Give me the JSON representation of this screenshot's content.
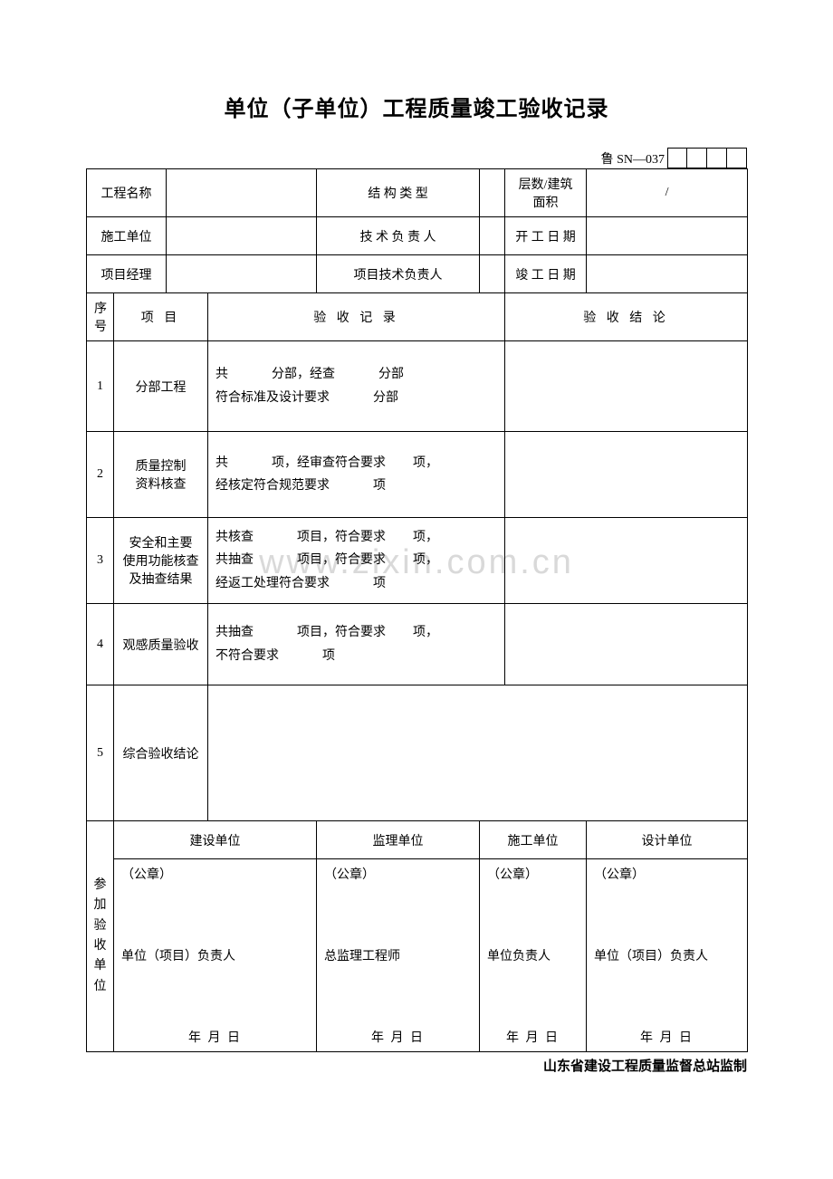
{
  "title": "单位（子单位）工程质量竣工验收记录",
  "formCode": "鲁 SN—037",
  "info": {
    "projectNameLabel": "工程名称",
    "structureTypeLabel": "结 构 类 型",
    "floorsAreaLabel": "层数/建筑面积",
    "floorsAreaValue": "/",
    "constructionUnitLabel": "施工单位",
    "techLeaderLabel": "技 术 负 责 人",
    "startDateLabel": "开 工 日 期",
    "pmLabel": "项目经理",
    "projectTechLeaderLabel": "项目技术负责人",
    "completionDateLabel": "竣 工 日 期"
  },
  "headers": {
    "seq": "序号",
    "item": "项   目",
    "record": "验 收 记 录",
    "conclusion": "验 收 结 论"
  },
  "rows": [
    {
      "seq": "1",
      "item": "分部工程",
      "record": "共<span class='fill-gap'></span>分部，经查<span class='fill-gap'></span>分部<br>符合标准及设计要求<span class='fill-gap'></span>分部"
    },
    {
      "seq": "2",
      "item": "质量控制<br>资料核查",
      "record": "共<span class='fill-gap'></span>项，经审查符合要求<span class='fill-gap-sm'></span>项，<br>经核定符合规范要求<span class='fill-gap'></span>项"
    },
    {
      "seq": "3",
      "item": "安全和主要<br>使用功能核查<br>及抽查结果",
      "record": "共核查<span class='fill-gap'></span>项目，符合要求<span class='fill-gap-sm'></span>项，<br>共抽查<span class='fill-gap'></span>项目，符合要求<span class='fill-gap-sm'></span>项，<br>经返工处理符合要求<span class='fill-gap'></span>项"
    },
    {
      "seq": "4",
      "item": "观感质量验收",
      "record": "共抽查<span class='fill-gap'></span>项目，符合要求<span class='fill-gap-sm'></span>项，<br>不符合要求<span class='fill-gap'></span>项"
    },
    {
      "seq": "5",
      "item": "综合验收结论",
      "record": ""
    }
  ],
  "participants": {
    "sideLabel": "参加验收单位",
    "units": [
      {
        "name": "建设单位",
        "seal": "（公章）",
        "role": "单位（项目）负责人"
      },
      {
        "name": "监理单位",
        "seal": "（公章）",
        "role": "总监理工程师"
      },
      {
        "name": "施工单位",
        "seal": "（公章）",
        "role": "单位负责人"
      },
      {
        "name": "设计单位",
        "seal": "（公章）",
        "role": "单位（项目）负责人"
      }
    ],
    "dateLabel": "年   月   日"
  },
  "footer": "山东省建设工程质量监督总站监制",
  "watermark": "www.zixin.com.cn"
}
